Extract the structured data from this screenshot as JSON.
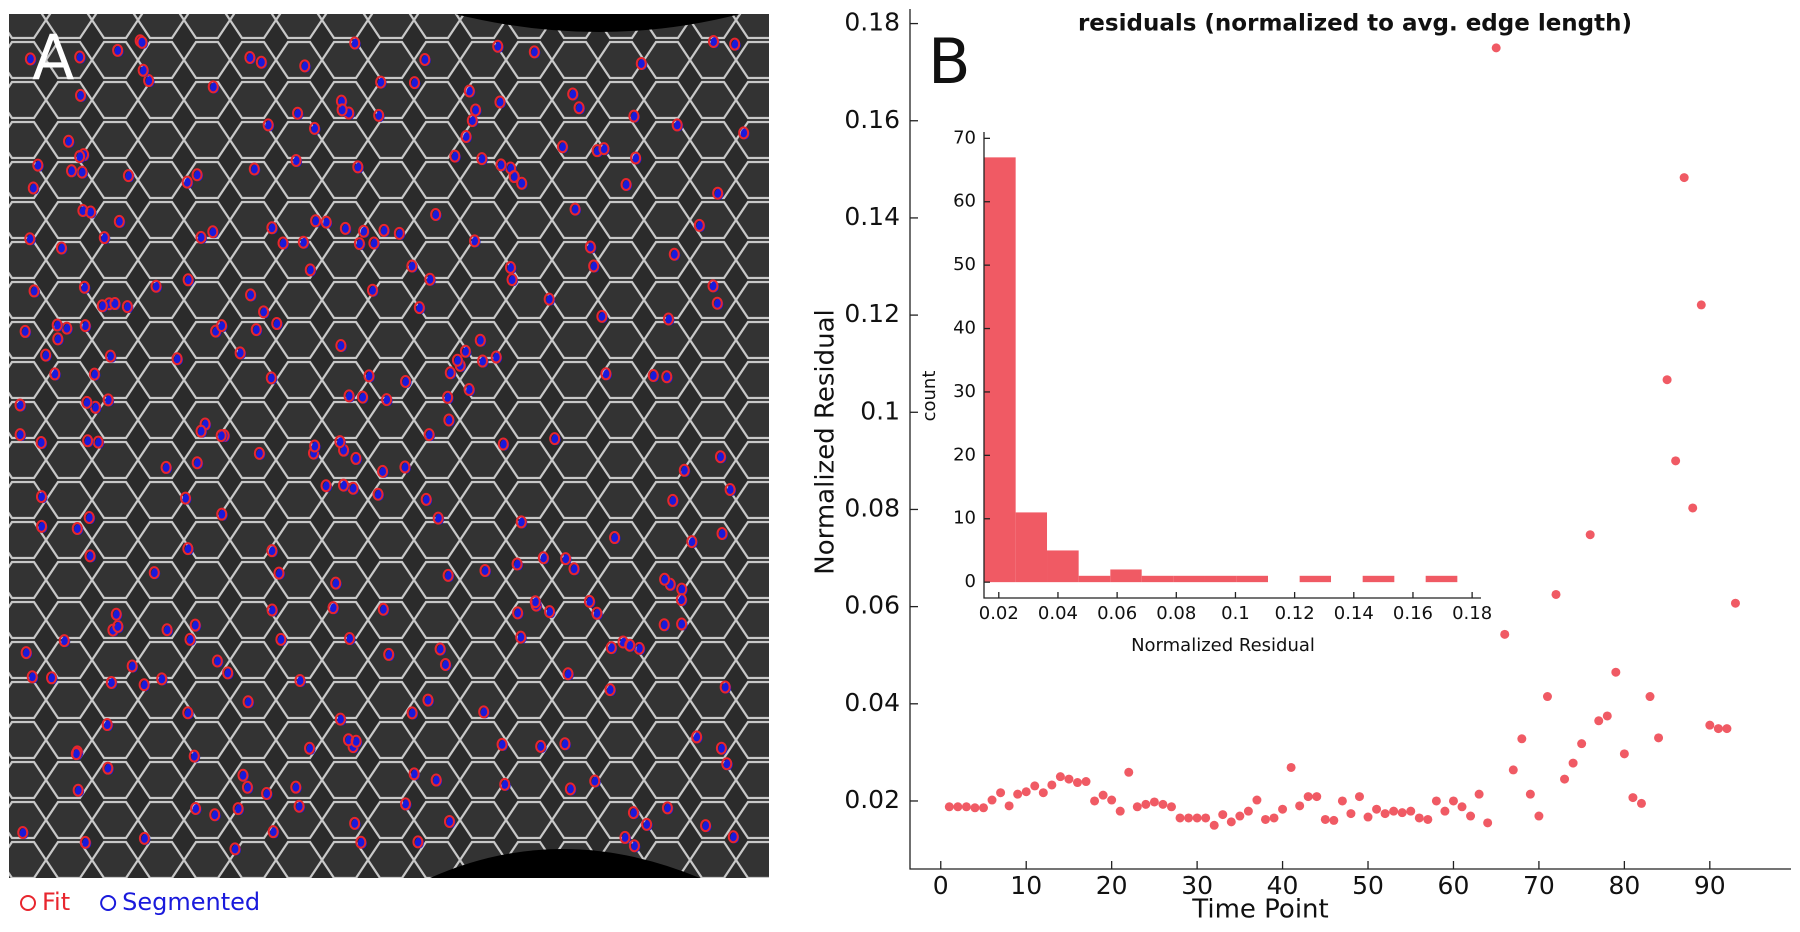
{
  "panel_a": {
    "label": "A",
    "legend": [
      {
        "name": "Fit",
        "color": "#e8262e"
      },
      {
        "name": "Segmented",
        "color": "#1a1adc"
      }
    ]
  },
  "chart_data": [
    {
      "type": "scatter",
      "panel_label": "B",
      "title": "residuals (normalized to avg. edge length)",
      "x_label": "Time Point",
      "y_label": "Normalized Residual",
      "color": "#f05a64",
      "x": [
        1,
        2,
        3,
        4,
        5,
        6,
        7,
        8,
        9,
        10,
        11,
        12,
        13,
        14,
        15,
        16,
        17,
        18,
        19,
        20,
        21,
        22,
        23,
        24,
        25,
        26,
        27,
        28,
        29,
        30,
        31,
        32,
        33,
        34,
        35,
        36,
        37,
        38,
        39,
        40,
        41,
        42,
        43,
        44,
        45,
        46,
        47,
        48,
        49,
        50,
        51,
        52,
        53,
        54,
        55,
        56,
        57,
        58,
        59,
        60,
        61,
        62,
        63,
        64,
        65,
        66,
        67,
        68,
        69,
        70,
        71,
        72,
        73,
        74,
        75,
        76,
        77,
        78,
        79,
        80,
        81,
        82,
        83,
        84,
        85,
        86,
        87,
        88,
        89,
        90,
        91,
        92,
        93
      ],
      "values": [
        0.0188,
        0.0188,
        0.0188,
        0.0186,
        0.0186,
        0.0202,
        0.0217,
        0.019,
        0.0214,
        0.0219,
        0.0231,
        0.0217,
        0.0233,
        0.025,
        0.0245,
        0.0238,
        0.024,
        0.02,
        0.0212,
        0.0202,
        0.0179,
        0.0259,
        0.0188,
        0.0193,
        0.0198,
        0.0193,
        0.0188,
        0.0165,
        0.0165,
        0.0165,
        0.0165,
        0.015,
        0.0172,
        0.0157,
        0.0169,
        0.0179,
        0.0202,
        0.0162,
        0.0165,
        0.0183,
        0.0269,
        0.019,
        0.0209,
        0.0209,
        0.0162,
        0.016,
        0.02,
        0.0174,
        0.0209,
        0.0167,
        0.0183,
        0.0174,
        0.0179,
        0.0176,
        0.0179,
        0.0165,
        0.0162,
        0.02,
        0.0179,
        0.02,
        0.0188,
        0.0169,
        0.0214,
        0.0155,
        0.175,
        0.0543,
        0.0264,
        0.0328,
        0.0214,
        0.0169,
        0.0415,
        0.0625,
        0.0245,
        0.0278,
        0.0318,
        0.0748,
        0.0365,
        0.0375,
        0.0465,
        0.0297,
        0.0207,
        0.0195,
        0.0415,
        0.033,
        0.1067,
        0.09,
        0.1483,
        0.0803,
        0.1221,
        0.0356,
        0.0349,
        0.0349,
        0.0607
      ],
      "xlim": [
        -3.6,
        99.5
      ],
      "ylim": [
        0.006,
        0.183
      ],
      "xticks": [
        0,
        10,
        20,
        30,
        40,
        50,
        60,
        70,
        80,
        90
      ],
      "yticks": [
        0.02,
        0.04,
        0.06,
        0.08,
        0.1,
        0.12,
        0.14,
        0.16,
        0.18
      ]
    },
    {
      "type": "histogram",
      "x_label": "Normalized Residual",
      "y_label": "count",
      "color": "#f05a64",
      "bins": [
        0.015,
        0.0257,
        0.0363,
        0.047,
        0.0577,
        0.0683,
        0.079,
        0.0897,
        0.1003,
        0.111,
        0.1217,
        0.1323,
        0.143,
        0.1537,
        0.1643,
        0.175
      ],
      "counts": [
        67,
        11,
        5,
        1,
        2,
        1,
        1,
        1,
        1,
        0,
        1,
        0,
        1,
        0,
        1
      ],
      "xlim": [
        0.015,
        0.183
      ],
      "ylim": [
        -2.5,
        71
      ],
      "xticks": [
        0.02,
        0.04,
        0.06,
        0.08,
        0.1,
        0.12,
        0.14,
        0.16,
        0.18
      ],
      "yticks": [
        0,
        10,
        20,
        30,
        40,
        50,
        60,
        70
      ]
    }
  ]
}
